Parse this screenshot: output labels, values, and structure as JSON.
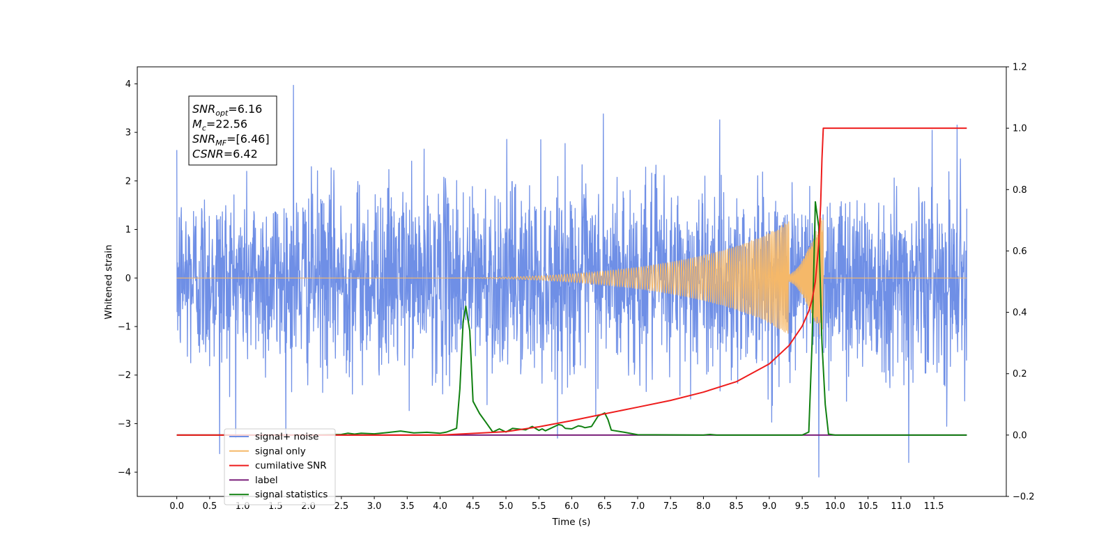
{
  "chart_data": {
    "type": "line",
    "xlabel": "Time (s)",
    "ylabel": "Whitened strain",
    "xlim": [
      -0.6,
      12.6
    ],
    "ylim": [
      -4.5,
      4.35
    ],
    "y2lim": [
      -0.2,
      1.2
    ],
    "x_ticks": [
      "0.0",
      "0.5",
      "1.0",
      "1.5",
      "2.0",
      "2.5",
      "3.0",
      "3.5",
      "4.0",
      "4.5",
      "5.0",
      "5.5",
      "6.0",
      "6.5",
      "7.0",
      "7.5",
      "8.0",
      "8.5",
      "9.0",
      "9.5",
      "10.0",
      "10.5",
      "11.0",
      "11.5"
    ],
    "y_ticks": [
      "4",
      "3",
      "2",
      "1",
      "0",
      "−1",
      "−2",
      "−3",
      "−4"
    ],
    "y2_ticks": [
      "1.2",
      "1.0",
      "0.8",
      "0.6",
      "0.4",
      "0.2",
      "0.0",
      "−0.2"
    ],
    "annotation": {
      "lines": [
        {
          "base": "SNR",
          "sub": "opt",
          "rest": "=6.16"
        },
        {
          "base": "M",
          "sub": "c",
          "rest": "=22.56"
        },
        {
          "base": "SNR",
          "sub": "MF",
          "rest": "=[6.46]"
        },
        {
          "base": "CSNR",
          "sub": "",
          "rest": "=6.42"
        }
      ]
    },
    "legend_position": "lower-left",
    "series": [
      {
        "name": "signal+ noise",
        "color": "#6f8fe6",
        "axis": "left",
        "x_range": [
          0.0,
          12.0
        ],
        "noise_sigma": 0.95,
        "peaks": [
          [
            1.77,
            3.97
          ],
          [
            0.65,
            -3.62
          ],
          [
            9.75,
            -4.1
          ],
          [
            11.12,
            -3.8
          ],
          [
            6.48,
            3.38
          ],
          [
            11.85,
            3.15
          ]
        ]
      },
      {
        "name": "signal only",
        "color": "#f5b869",
        "axis": "left",
        "chirp": {
          "t_merge": 9.82,
          "max_amp": 1.3
        }
      },
      {
        "name": "cumilative SNR",
        "color": "#ee1c1c",
        "axis": "right",
        "x": [
          0.0,
          4.0,
          5.0,
          5.5,
          6.0,
          6.5,
          7.0,
          7.5,
          8.0,
          8.5,
          9.0,
          9.3,
          9.5,
          9.6,
          9.65,
          9.7,
          9.75,
          9.78,
          9.8,
          9.82,
          9.9,
          12.0
        ],
        "y": [
          0.0,
          0.0,
          0.011,
          0.027,
          0.047,
          0.069,
          0.091,
          0.113,
          0.14,
          0.174,
          0.232,
          0.292,
          0.355,
          0.404,
          0.44,
          0.5,
          0.62,
          0.75,
          0.9,
          1.0,
          1.0,
          1.0
        ]
      },
      {
        "name": "label",
        "color": "#7a1f7a",
        "axis": "right",
        "x": [
          0.0,
          12.0
        ],
        "y": [
          0.0,
          0.0
        ]
      },
      {
        "name": "signal statistics",
        "color": "#108010",
        "axis": "right",
        "x": [
          0.0,
          2.0,
          2.5,
          2.6,
          2.7,
          2.8,
          3.0,
          3.2,
          3.4,
          3.6,
          3.8,
          4.0,
          4.1,
          4.25,
          4.3,
          4.35,
          4.39,
          4.45,
          4.5,
          4.6,
          4.7,
          4.8,
          4.9,
          5.0,
          5.1,
          5.3,
          5.4,
          5.5,
          5.55,
          5.6,
          5.8,
          5.85,
          5.9,
          6.0,
          6.1,
          6.15,
          6.2,
          6.3,
          6.4,
          6.5,
          6.55,
          6.6,
          6.8,
          7.0,
          8.0,
          8.1,
          8.2,
          9.5,
          9.6,
          9.65,
          9.7,
          9.75,
          9.8,
          9.85,
          9.9,
          10.0,
          12.0
        ],
        "y": [
          0.0,
          0.0,
          0.002,
          0.006,
          0.003,
          0.006,
          0.004,
          0.008,
          0.013,
          0.007,
          0.009,
          0.006,
          0.01,
          0.022,
          0.15,
          0.37,
          0.42,
          0.34,
          0.11,
          0.07,
          0.04,
          0.01,
          0.02,
          0.01,
          0.022,
          0.017,
          0.028,
          0.015,
          0.02,
          0.014,
          0.034,
          0.032,
          0.022,
          0.02,
          0.03,
          0.028,
          0.024,
          0.028,
          0.062,
          0.072,
          0.05,
          0.016,
          0.009,
          0.001,
          0.0,
          0.002,
          0.0,
          0.0,
          0.01,
          0.3,
          0.76,
          0.68,
          0.3,
          0.1,
          0.003,
          0.0,
          0.0
        ]
      }
    ]
  }
}
